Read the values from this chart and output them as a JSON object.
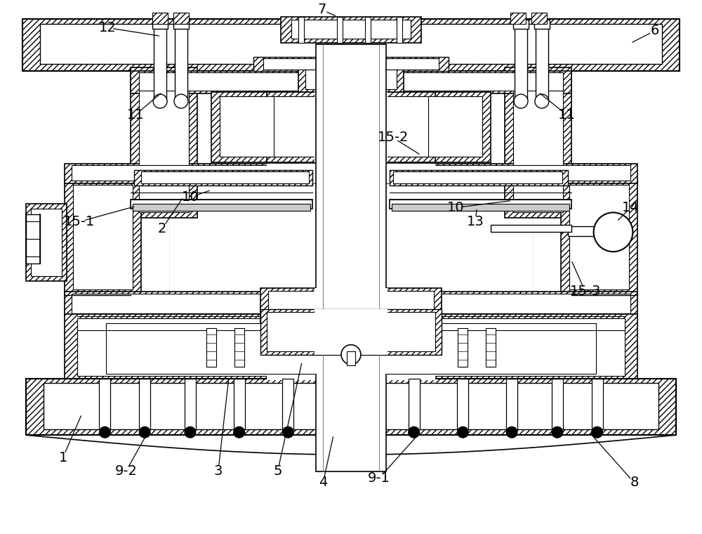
{
  "bg_color": "#ffffff",
  "lc": "#000000",
  "fig_width": 10.0,
  "fig_height": 7.6,
  "dpi": 100
}
